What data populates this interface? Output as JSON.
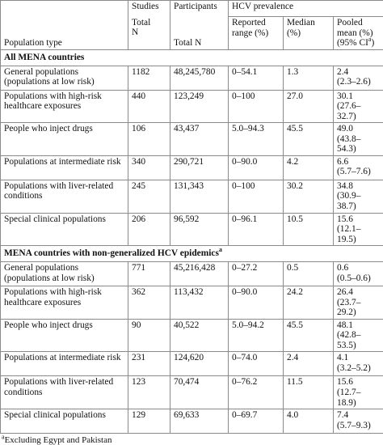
{
  "table": {
    "headers": {
      "studies": "Studies",
      "participants": "Participants",
      "hcv": "HCV prevalence",
      "population_type": "Population type",
      "studies_n": "Total N",
      "participants_n": "Total N",
      "range": "Reported range (%)",
      "median": "Median (%)",
      "pooled": "Pooled mean (%) (95% CI",
      "pooled_note": "a",
      "pooled_close": ")"
    },
    "sections": [
      {
        "title": "All MENA countries",
        "rows": [
          [
            "General populations (populations at low risk)",
            "1182",
            "48,245,780",
            "0–54.1",
            "1.3",
            "2.4",
            "(2.3–2.6)"
          ],
          [
            "Populations with high-risk healthcare exposures",
            "440",
            "123,249",
            "0–100",
            "27.0",
            "30.1",
            "(27.6–32.7)"
          ],
          [
            "People who inject drugs",
            "106",
            "43,437",
            "5.0–94.3",
            "45.5",
            "49.0",
            "(43.8–54.3)"
          ],
          [
            "Populations at intermediate risk",
            "340",
            "290,721",
            "0–90.0",
            "4.2",
            "6.6",
            "(5.7–7.6)"
          ],
          [
            "Populations with liver-related conditions",
            "245",
            "131,343",
            "0–100",
            "30.2",
            "34.8",
            "(30.9–38.7)"
          ],
          [
            "Special clinical populations",
            "206",
            "96,592",
            "0–96.1",
            "10.5",
            "15.6",
            "(12.1–19.5)"
          ]
        ]
      },
      {
        "title": "MENA countries with non-generalized HCV epidemics",
        "note": "a",
        "rows": [
          [
            "General populations (populations at low risk)",
            "771",
            "45,216,428",
            "0–27.2",
            "0.5",
            "0.6",
            "(0.5–0.6)"
          ],
          [
            "Populations with high-risk healthcare exposures",
            "362",
            "113,432",
            "0–90.0",
            "24.2",
            "26.4",
            "(23.7–29.2)"
          ],
          [
            "People who inject drugs",
            "90",
            "40,522",
            "5.0–94.2",
            "45.5",
            "48.1",
            "(42.8–53.5)"
          ],
          [
            "Populations at intermediate risk",
            "231",
            "124,620",
            "0–74.0",
            "2.4",
            "4.1",
            "(3.2–5.2)"
          ],
          [
            "Populations with liver-related conditions",
            "123",
            "70,474",
            "0–76.2",
            "11.5",
            "15.6",
            "(12.7–18.9)"
          ],
          [
            "Special clinical populations",
            "129",
            "69,633",
            "0–69.7",
            "4.0",
            "7.4",
            "(5.7–9.3)"
          ]
        ]
      }
    ],
    "footnote": {
      "note": "a",
      "text": "Excluding Egypt and Pakistan"
    }
  }
}
